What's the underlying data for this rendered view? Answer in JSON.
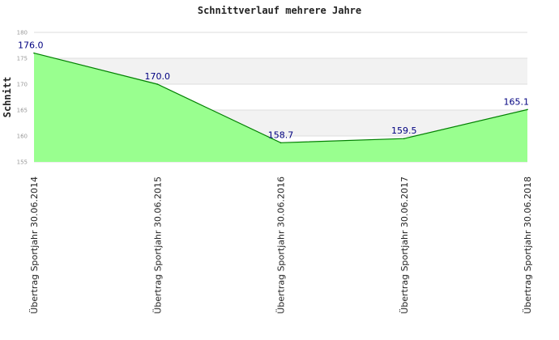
{
  "chart_data": {
    "type": "area",
    "title": "Schnittverlauf mehrere Jahre",
    "xlabel": "",
    "ylabel": "Schnitt",
    "categories": [
      "Übertrag Sportjahr 30.06.2014",
      "Übertrag Sportjahr 30.06.2015",
      "Übertrag Sportjahr 30.06.2016",
      "Übertrag Sportjahr 30.06.2017",
      "Übertrag Sportjahr 30.06.2018"
    ],
    "series": [
      {
        "values": [
          176.0,
          170.0,
          158.7,
          159.5,
          165.1
        ]
      }
    ],
    "data_labels": [
      "176.0",
      "170.0",
      "158.7",
      "159.5",
      "165.1"
    ],
    "ylim": [
      155,
      180
    ],
    "yticks": [
      155,
      160,
      165,
      170,
      175,
      180
    ],
    "grid": true,
    "colors": {
      "fill": "#99ff8f",
      "line": "#008000",
      "band": "#f2f2f2",
      "data_label": "#000080"
    }
  }
}
